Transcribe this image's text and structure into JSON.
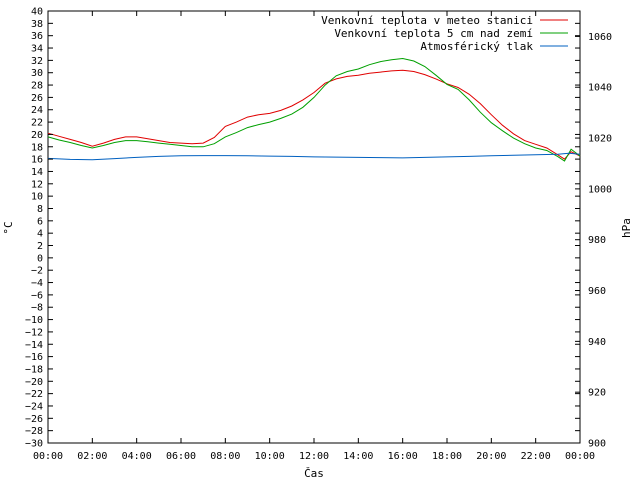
{
  "chart_data": {
    "type": "line",
    "xlabel": "Čas",
    "ylabel": "°C",
    "y2label": "hPa",
    "x_ticks": [
      "00:00",
      "02:00",
      "04:00",
      "06:00",
      "08:00",
      "10:00",
      "12:00",
      "14:00",
      "16:00",
      "18:00",
      "20:00",
      "22:00",
      "00:00"
    ],
    "y_ticks": [
      "40",
      "38",
      "36",
      "34",
      "32",
      "30",
      "28",
      "26",
      "24",
      "22",
      "20",
      "18",
      "16",
      "14",
      "12",
      "10",
      "8",
      "6",
      "4",
      "2",
      "0",
      "−2",
      "−4",
      "−6",
      "−8",
      "−10",
      "−12",
      "−14",
      "−16",
      "−18",
      "−20",
      "−22",
      "−24",
      "−26",
      "−28",
      "−30"
    ],
    "y2_ticks": [
      "1060",
      "1040",
      "1020",
      "1000",
      "980",
      "960",
      "940",
      "920",
      "900"
    ],
    "x_range_hours": [
      0,
      24
    ],
    "ylim": [
      -30,
      40
    ],
    "y2lim": [
      900,
      1070
    ],
    "grid": false,
    "legend_position": "top-right",
    "series": [
      {
        "name": "Venkovní teplota v meteo stanici",
        "color": "#e00000",
        "axis": "left",
        "x": [
          0,
          0.5,
          1,
          1.5,
          2,
          2.5,
          3,
          3.5,
          4,
          4.5,
          5,
          5.5,
          6,
          6.5,
          7,
          7.5,
          8,
          8.5,
          9,
          9.5,
          10,
          10.5,
          11,
          11.5,
          12,
          12.5,
          13,
          13.5,
          14,
          14.5,
          15,
          15.5,
          16,
          16.5,
          17,
          17.5,
          18,
          18.5,
          19,
          19.5,
          20,
          20.5,
          21,
          21.5,
          22,
          22.5,
          23,
          23.3,
          23.6,
          24
        ],
        "values": [
          20.2,
          19.7,
          19.2,
          18.7,
          18.1,
          18.6,
          19.2,
          19.6,
          19.6,
          19.3,
          19.0,
          18.7,
          18.6,
          18.5,
          18.6,
          19.5,
          21.3,
          22.0,
          22.8,
          23.2,
          23.4,
          23.9,
          24.6,
          25.6,
          26.8,
          28.3,
          29.0,
          29.4,
          29.6,
          29.9,
          30.1,
          30.3,
          30.4,
          30.2,
          29.7,
          29.0,
          28.2,
          27.6,
          26.5,
          25.0,
          23.2,
          21.5,
          20.1,
          19.0,
          18.4,
          17.8,
          16.7,
          16.0,
          17.2,
          16.5
        ]
      },
      {
        "name": "Venkovní teplota 5 cm nad zemí",
        "color": "#00a000",
        "axis": "left",
        "x": [
          0,
          0.5,
          1,
          1.5,
          2,
          2.5,
          3,
          3.5,
          4,
          4.5,
          5,
          5.5,
          6,
          6.5,
          7,
          7.5,
          8,
          8.5,
          9,
          9.5,
          10,
          10.5,
          11,
          11.5,
          12,
          12.5,
          13,
          13.5,
          14,
          14.5,
          15,
          15.5,
          16,
          16.5,
          17,
          17.5,
          18,
          18.5,
          19,
          19.5,
          20,
          20.5,
          21,
          21.5,
          22,
          22.5,
          23,
          23.3,
          23.6,
          24
        ],
        "values": [
          19.6,
          19.1,
          18.7,
          18.2,
          17.8,
          18.2,
          18.7,
          19.0,
          19.0,
          18.8,
          18.6,
          18.4,
          18.2,
          18.0,
          18.0,
          18.5,
          19.6,
          20.3,
          21.1,
          21.6,
          22.0,
          22.6,
          23.3,
          24.4,
          26.0,
          28.0,
          29.5,
          30.2,
          30.6,
          31.3,
          31.8,
          32.1,
          32.3,
          31.9,
          31.0,
          29.6,
          28.1,
          27.3,
          25.6,
          23.6,
          21.9,
          20.6,
          19.4,
          18.5,
          17.8,
          17.4,
          16.4,
          15.7,
          17.6,
          16.5
        ]
      },
      {
        "name": "Atmosférický tlak",
        "color": "#0060c0",
        "axis": "right",
        "x": [
          0,
          1,
          2,
          3,
          4,
          5,
          6,
          7,
          8,
          9,
          10,
          11,
          12,
          13,
          14,
          15,
          16,
          17,
          18,
          19,
          20,
          21,
          22,
          23,
          23.5,
          24
        ],
        "values": [
          1012.0,
          1011.6,
          1011.5,
          1011.9,
          1012.4,
          1012.8,
          1013.0,
          1013.1,
          1013.1,
          1013.0,
          1012.9,
          1012.8,
          1012.6,
          1012.5,
          1012.4,
          1012.3,
          1012.2,
          1012.4,
          1012.6,
          1012.8,
          1013.0,
          1013.2,
          1013.4,
          1013.6,
          1014.0,
          1013.6
        ]
      }
    ]
  }
}
